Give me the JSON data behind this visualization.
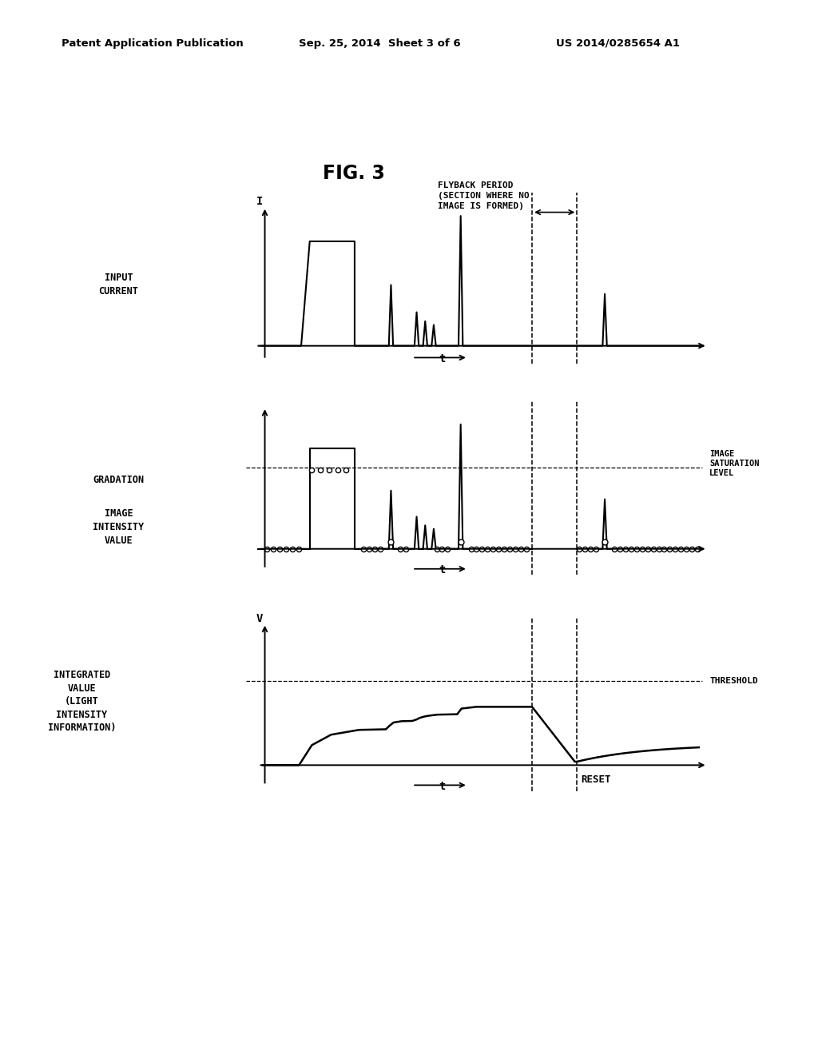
{
  "fig_title": "FIG. 3",
  "header_left": "Patent Application Publication",
  "header_center": "Sep. 25, 2014  Sheet 3 of 6",
  "header_right": "US 2014/0285654 A1",
  "flyback_label": "FLYBACK PERIOD\n(SECTION WHERE NO\nIMAGE IS FORMED)",
  "plot1_ylabel": "INPUT\nCURRENT",
  "plot1_yaxis_label": "I",
  "plot1_xlabel": "t",
  "plot2_ylabel_top": "GRADATION",
  "plot2_ylabel_bot": "IMAGE\nINTENSITY\nVALUE",
  "plot2_ylabel3_line1": "IMAGE",
  "plot2_ylabel3_line2": "SATURATION",
  "plot2_ylabel3_line3": "LEVEL",
  "plot2_xlabel": "t",
  "plot3_ylabel": "INTEGRATED\nVALUE\n(LIGHT\nINTENSITY\nINFORMATION)",
  "plot3_yaxis_label": "V",
  "plot3_xlabel": "t",
  "threshold_label": "THRESHOLD",
  "reset_label": "RESET",
  "dline1": 6.3,
  "dline2": 7.35,
  "xmax": 10.0,
  "background_color": "#ffffff",
  "line_color": "#000000"
}
